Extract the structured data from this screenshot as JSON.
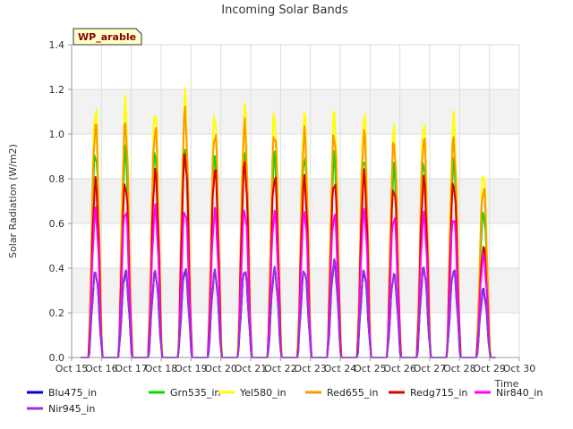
{
  "chart_data": {
    "type": "line",
    "title": "Incoming Solar Bands",
    "xlabel": "Time",
    "ylabel": "Solar Radiation (W/m2)",
    "annotation": "WP_arable",
    "xlim": [
      15,
      30
    ],
    "ylim": [
      0,
      1.4
    ],
    "x_ticks": [
      {
        "value": 15,
        "label": "Oct 15"
      },
      {
        "value": 16,
        "label": "Oct 16"
      },
      {
        "value": 17,
        "label": "Oct 17"
      },
      {
        "value": 18,
        "label": "Oct 18"
      },
      {
        "value": 19,
        "label": "Oct 19"
      },
      {
        "value": 20,
        "label": "Oct 20"
      },
      {
        "value": 21,
        "label": "Oct 21"
      },
      {
        "value": 22,
        "label": "Oct 22"
      },
      {
        "value": 23,
        "label": "Oct 23"
      },
      {
        "value": 24,
        "label": "Oct 24"
      },
      {
        "value": 25,
        "label": "Oct 25"
      },
      {
        "value": 26,
        "label": "Oct 26"
      },
      {
        "value": 27,
        "label": "Oct 27"
      },
      {
        "value": 28,
        "label": "Oct 28"
      },
      {
        "value": 29,
        "label": "Oct 29"
      },
      {
        "value": 30,
        "label": "Oct 30"
      }
    ],
    "y_ticks": [
      {
        "value": 0.0,
        "label": "0.0"
      },
      {
        "value": 0.2,
        "label": "0.2"
      },
      {
        "value": 0.4,
        "label": "0.4"
      },
      {
        "value": 0.6,
        "label": "0.6"
      },
      {
        "value": 0.8,
        "label": "0.8"
      },
      {
        "value": 1.0,
        "label": "1.0"
      },
      {
        "value": 1.2,
        "label": "1.2"
      },
      {
        "value": 1.4,
        "label": "1.4"
      }
    ],
    "grid": true,
    "legend_position": "bottom",
    "day_peak_times": [
      15.8,
      16.8,
      17.8,
      18.8,
      19.8,
      20.8,
      21.8,
      22.8,
      23.8,
      24.8,
      25.8,
      26.8,
      27.8,
      28.8
    ],
    "series": [
      {
        "name": "Blu475_in",
        "color": "#0000dd",
        "daily_peaks": [
          0.38,
          0.38,
          0.38,
          0.39,
          0.38,
          0.39,
          0.39,
          0.39,
          0.42,
          0.38,
          0.37,
          0.4,
          0.39,
          0.3
        ]
      },
      {
        "name": "Grn535_in",
        "color": "#00dd00",
        "daily_peaks": [
          0.92,
          0.92,
          0.92,
          0.92,
          0.9,
          0.92,
          0.9,
          0.9,
          0.89,
          0.9,
          0.84,
          0.88,
          0.87,
          0.65
        ]
      },
      {
        "name": "Yel580_in",
        "color": "#ffff00",
        "daily_peaks": [
          1.12,
          1.13,
          1.11,
          1.16,
          1.09,
          1.11,
          1.09,
          1.09,
          1.09,
          1.09,
          1.01,
          1.06,
          1.06,
          0.83
        ]
      },
      {
        "name": "Red655_in",
        "color": "#ff9900",
        "daily_peaks": [
          1.04,
          1.04,
          1.03,
          1.09,
          1.01,
          1.03,
          1.01,
          1.0,
          1.0,
          1.0,
          0.96,
          0.98,
          0.97,
          0.76
        ]
      },
      {
        "name": "Redg715_in",
        "color": "#dd0000",
        "daily_peaks": [
          0.78,
          0.78,
          0.83,
          0.91,
          0.84,
          0.86,
          0.81,
          0.79,
          0.79,
          0.81,
          0.76,
          0.79,
          0.78,
          0.49
        ]
      },
      {
        "name": "Nir840_in",
        "color": "#ff00ff",
        "daily_peaks": [
          0.65,
          0.66,
          0.66,
          0.66,
          0.65,
          0.66,
          0.65,
          0.65,
          0.64,
          0.65,
          0.63,
          0.63,
          0.63,
          0.45
        ]
      },
      {
        "name": "Nir945_in",
        "color": "#9933dd",
        "daily_peaks": [
          0.38,
          0.39,
          0.38,
          0.4,
          0.38,
          0.39,
          0.39,
          0.39,
          0.43,
          0.39,
          0.37,
          0.4,
          0.39,
          0.29
        ]
      }
    ]
  }
}
